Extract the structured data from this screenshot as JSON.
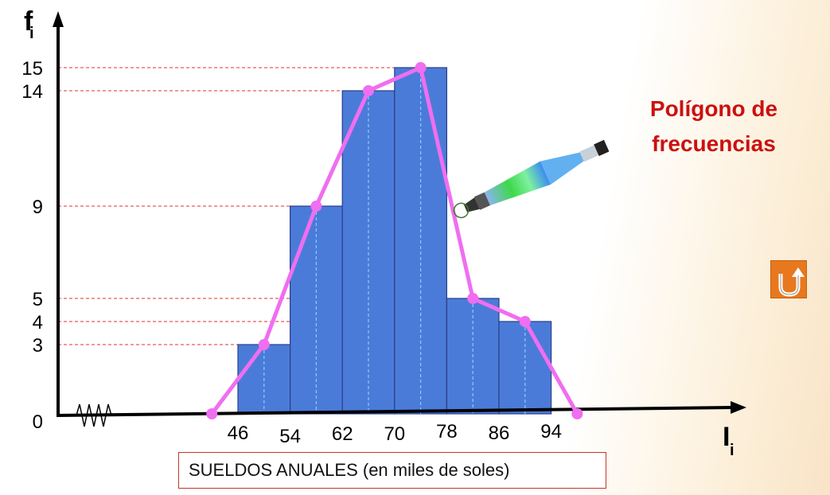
{
  "chart_data": {
    "type": "bar",
    "title": "",
    "xlabel": "I",
    "xlabel_sub": "i",
    "ylabel": "f",
    "ylabel_sub": "i",
    "x_ticks": [
      "46",
      "54",
      "62",
      "70",
      "78",
      "86",
      "94"
    ],
    "y_ticks": [
      "0",
      "3",
      "4",
      "5",
      "9",
      "14",
      "15"
    ],
    "bins": [
      {
        "from": 46,
        "to": 54,
        "mark": 50,
        "freq": 3
      },
      {
        "from": 54,
        "to": 62,
        "mark": 58,
        "freq": 9
      },
      {
        "from": 62,
        "to": 70,
        "mark": 66,
        "freq": 14
      },
      {
        "from": 70,
        "to": 78,
        "mark": 74,
        "freq": 15
      },
      {
        "from": 78,
        "to": 86,
        "mark": 82,
        "freq": 5
      },
      {
        "from": 86,
        "to": 94,
        "mark": 90,
        "freq": 4
      }
    ],
    "polygon": [
      {
        "x": 42,
        "y": 0
      },
      {
        "x": 50,
        "y": 3
      },
      {
        "x": 58,
        "y": 9
      },
      {
        "x": 66,
        "y": 14
      },
      {
        "x": 74,
        "y": 15
      },
      {
        "x": 82,
        "y": 5
      },
      {
        "x": 90,
        "y": 4
      },
      {
        "x": 98,
        "y": 0
      }
    ],
    "xlim": [
      32,
      98
    ],
    "ylim": [
      0,
      15
    ],
    "bar_color": "#4b7bd8",
    "polygon_color": "#f06ef0",
    "guide_color": "#e03030",
    "axis_break": true,
    "annotation": [
      "Polígono de",
      "frecuencias"
    ],
    "annotation_color": "#cc1010"
  },
  "caption": "SUELDOS ANUALES (en miles de soles)",
  "return_button": {
    "icon": "u-turn-return-icon",
    "color": "#e8781e"
  }
}
